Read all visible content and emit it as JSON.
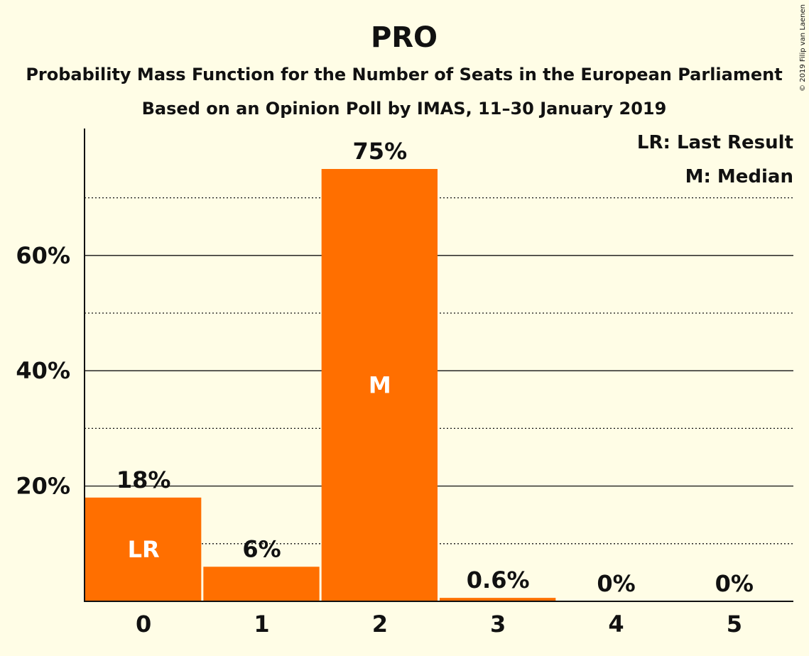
{
  "chart_data": {
    "type": "bar",
    "title": "PRO",
    "subtitle_lines": [
      "Probability Mass Function for the Number of Seats in the European Parliament",
      "Based on an Opinion Poll by IMAS, 11–30 January 2019"
    ],
    "categories": [
      "0",
      "1",
      "2",
      "3",
      "4",
      "5"
    ],
    "values": [
      18,
      6,
      75,
      0.6,
      0,
      0
    ],
    "value_labels": [
      "18%",
      "6%",
      "75%",
      "0.6%",
      "0%",
      "0%"
    ],
    "bar_markers": [
      "LR",
      "",
      "M",
      "",
      "",
      ""
    ],
    "ylim": [
      0,
      82
    ],
    "yticks_major": [
      20,
      40,
      60
    ],
    "ytick_labels": [
      "20%",
      "40%",
      "60%"
    ],
    "yticks_minor": [
      10,
      30,
      50,
      70
    ],
    "grid": true,
    "legend": [
      "LR: Last Result",
      "M: Median"
    ],
    "legend_position": "top-right",
    "copyright": "© 2019 Filip van Laenen",
    "colors": {
      "bar": "#FF6F00",
      "background": "#FFFDE6",
      "text": "#111111",
      "bar_marker_text": "#FFFFFF"
    }
  }
}
